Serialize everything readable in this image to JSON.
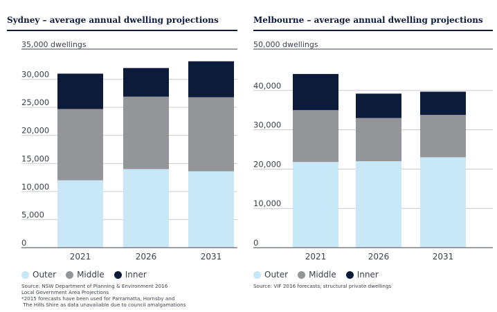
{
  "chart_data": [
    {
      "type": "bar",
      "stacked": true,
      "title": "Sydney – average annual dwelling projections",
      "unit_label": "35,000 dwellings",
      "categories": [
        "2021",
        "2026",
        "2031"
      ],
      "series": [
        {
          "name": "Outer",
          "color": "#c8e8f7",
          "values": [
            12000,
            14000,
            13600
          ]
        },
        {
          "name": "Middle",
          "color": "#939598",
          "values": [
            12700,
            12900,
            13200
          ]
        },
        {
          "name": "Inner",
          "color": "#0d1b3a",
          "values": [
            6300,
            5100,
            6400
          ]
        }
      ],
      "ylim": [
        0,
        35000
      ],
      "yticks": [
        0,
        5000,
        10000,
        15000,
        20000,
        25000,
        30000
      ],
      "ytick_labels": [
        "0",
        "5,000",
        "10,000",
        "15,000",
        "20,000",
        "25,000",
        "30,000"
      ],
      "legend_position": "bottom-left",
      "source": "Source: NSW Department of Planning & Environment 2016\nLocal Government Area Projections\n*2015 forecasts have been used for Parramatta, Hornsby and\n The Hills Shire as data unavailable due to council amalgamations"
    },
    {
      "type": "bar",
      "stacked": true,
      "title": "Melbourne – average annual dwelling projections",
      "unit_label": "50,000 dwellings",
      "categories": [
        "2021",
        "2026",
        "2031"
      ],
      "series": [
        {
          "name": "Outer",
          "color": "#c8e8f7",
          "values": [
            21800,
            22000,
            23000
          ]
        },
        {
          "name": "Middle",
          "color": "#939598",
          "values": [
            13200,
            11000,
            10800
          ]
        },
        {
          "name": "Inner",
          "color": "#0d1b3a",
          "values": [
            9200,
            6200,
            5900
          ]
        }
      ],
      "ylim": [
        0,
        50000
      ],
      "yticks": [
        0,
        10000,
        20000,
        30000,
        40000
      ],
      "ytick_labels": [
        "0",
        "10,000",
        "20,000",
        "30,000",
        "40,000"
      ],
      "legend_position": "bottom-left",
      "source": "Source: VIF 2016 forecasts, structural private dwellings"
    }
  ]
}
